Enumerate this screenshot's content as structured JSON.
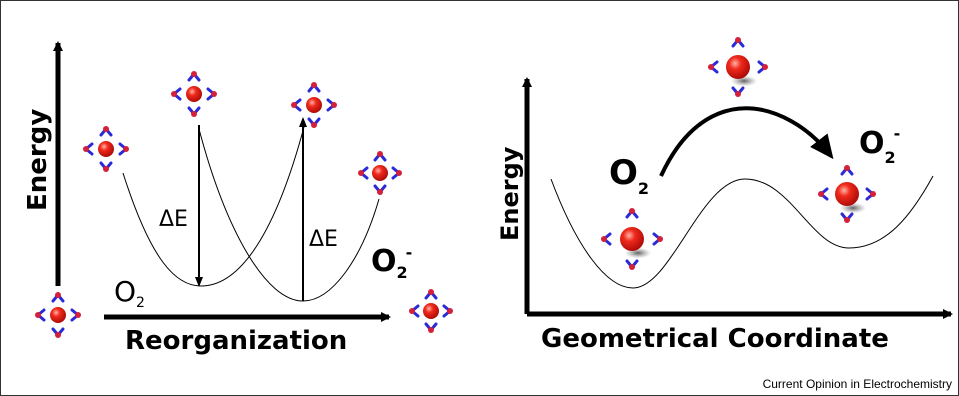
{
  "left_panel": {
    "y_axis_label": "Energy",
    "x_axis_label": "Reorganization",
    "delta_e_labels": [
      "ΔE",
      "ΔE"
    ],
    "species_left": {
      "base": "O",
      "sub": "2"
    },
    "species_right": {
      "base": "O",
      "sub": "2",
      "sup": "-"
    }
  },
  "right_panel": {
    "y_axis_label": "Energy",
    "x_axis_label": "Geometrical Coordinate",
    "species_left": {
      "base": "O",
      "sub": "2"
    },
    "species_right": {
      "base": "O",
      "sub": "2",
      "sup": "-"
    }
  },
  "credit": "Current Opinion in Electrochemistry",
  "colors": {
    "ion": "#e8120c",
    "ion_highlight": "#ff8a7a",
    "water_o": "#2a2ad6",
    "water_h": "#d3203b",
    "line": "#000000"
  }
}
